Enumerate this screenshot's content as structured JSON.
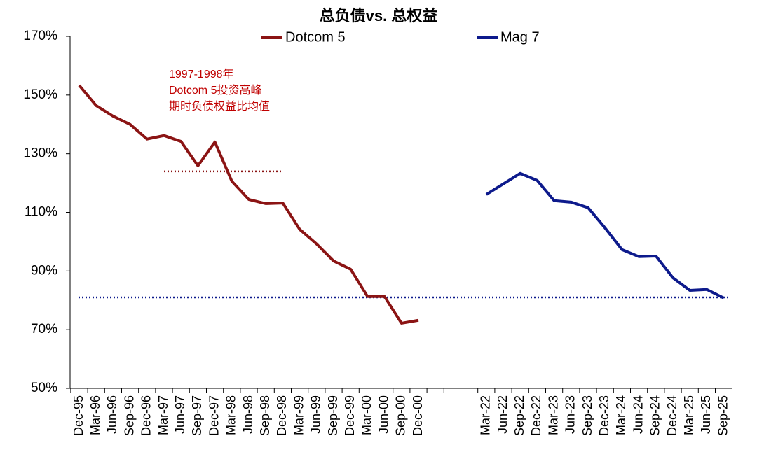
{
  "chart_data": {
    "type": "line",
    "title": "总负债vs. 总权益",
    "categories": [
      "Dec-95",
      "Mar-96",
      "Jun-96",
      "Sep-96",
      "Dec-96",
      "Mar-97",
      "Jun-97",
      "Sep-97",
      "Dec-97",
      "Mar-98",
      "Jun-98",
      "Sep-98",
      "Dec-98",
      "Mar-99",
      "Jun-99",
      "Sep-99",
      "Dec-99",
      "Mar-00",
      "Jun-00",
      "Sep-00",
      "Dec-00",
      null,
      null,
      null,
      "Mar-22",
      "Jun-22",
      "Sep-22",
      "Dec-22",
      "Mar-23",
      "Jun-23",
      "Sep-23",
      "Dec-23",
      "Mar-24",
      "Jun-24",
      "Sep-24",
      "Dec-24",
      "Mar-25",
      "Jun-25",
      "Sep-25"
    ],
    "series": [
      {
        "name": "Dotcom 5",
        "color": "#8b1414",
        "values": [
          153.3,
          146.4,
          142.8,
          140,
          135,
          136.2,
          134.2,
          125.9,
          134,
          120.6,
          114.4,
          113,
          113.2,
          104.2,
          99.2,
          93.4,
          90.6,
          81.3,
          81.3,
          72.2,
          73.2,
          null,
          null,
          null,
          null,
          null,
          null,
          null,
          null,
          null,
          null,
          null,
          null,
          null,
          null,
          null,
          null,
          null,
          null
        ]
      },
      {
        "name": "Mag 7",
        "color": "#0d1a8c",
        "values": [
          null,
          null,
          null,
          null,
          null,
          null,
          null,
          null,
          null,
          null,
          null,
          null,
          null,
          null,
          null,
          null,
          null,
          null,
          null,
          null,
          null,
          null,
          null,
          null,
          116.1,
          119.7,
          123.3,
          120.9,
          114,
          113.5,
          111.6,
          104.7,
          97.3,
          94.9,
          95.1,
          87.7,
          83.4,
          83.7,
          80.8
        ]
      }
    ],
    "ylim": [
      50,
      170
    ],
    "yticks": [
      {
        "value": 50,
        "label": "50%"
      },
      {
        "value": 70,
        "label": "70%"
      },
      {
        "value": 90,
        "label": "90%"
      },
      {
        "value": 110,
        "label": "110%"
      },
      {
        "value": 130,
        "label": "130%"
      },
      {
        "value": 150,
        "label": "150%"
      },
      {
        "value": 170,
        "label": "170%"
      }
    ],
    "reference_lines": [
      {
        "value": 124,
        "color": "#8b1414",
        "from": "Mar-97",
        "to": "Dec-98"
      },
      {
        "value": 81,
        "color": "#0d1a8c"
      }
    ],
    "annotation": {
      "lines": [
        "1997-1998年",
        "Dotcom 5投资高峰",
        "期时负债权益比均值"
      ],
      "color": "#c00000"
    },
    "legend": "top"
  }
}
